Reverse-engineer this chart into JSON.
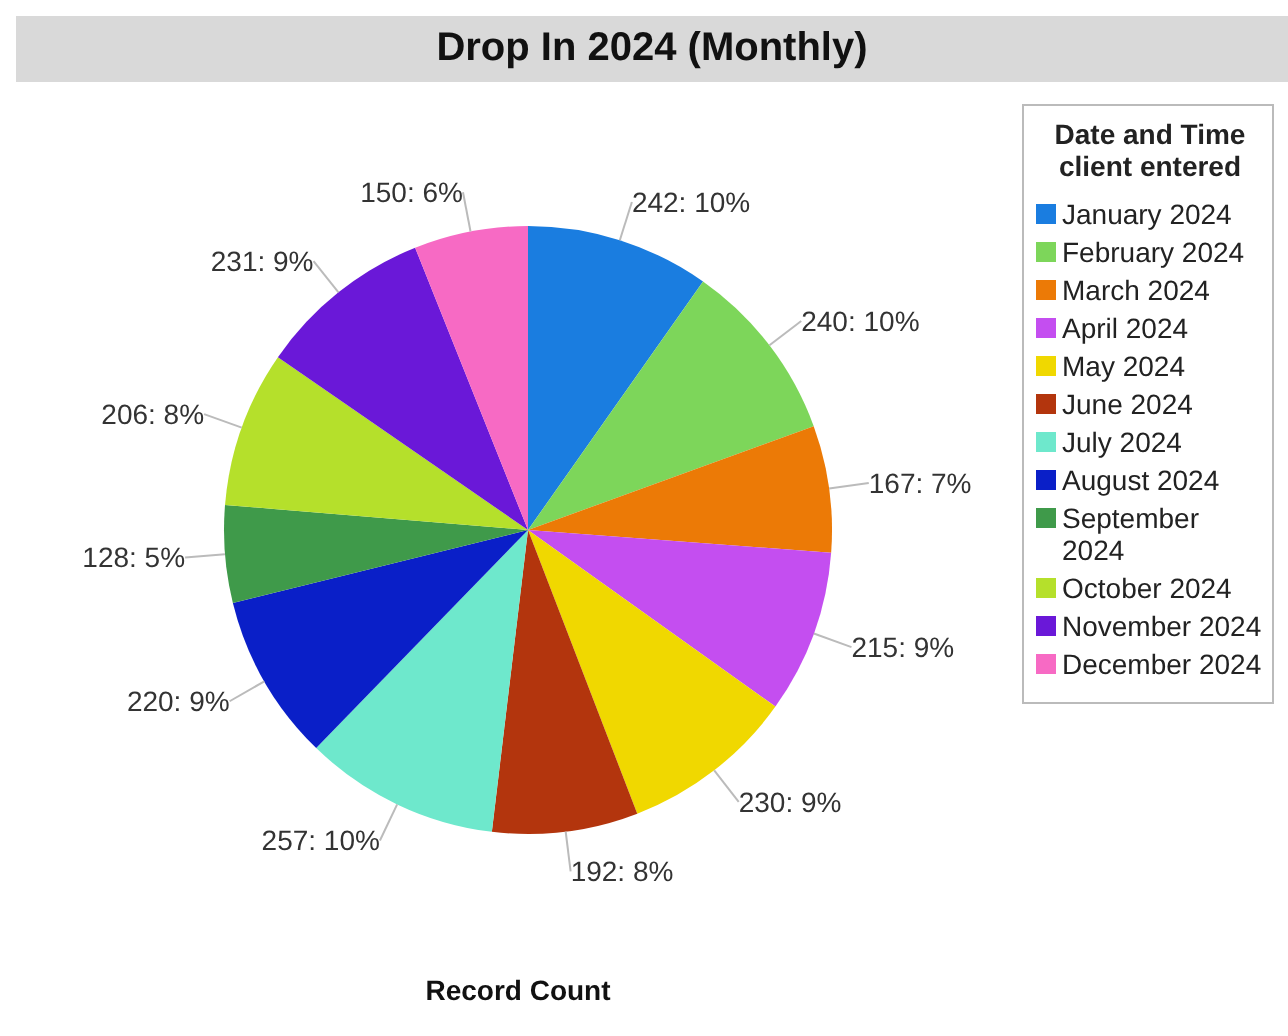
{
  "chart_data": {
    "type": "pie",
    "title": "Drop In 2024 (Monthly)",
    "xlabel": "Record Count",
    "legend_title": "Date and Time client entered",
    "legend": "right",
    "categories": [
      "January 2024",
      "February 2024",
      "March 2024",
      "April 2024",
      "May 2024",
      "June 2024",
      "July 2024",
      "August 2024",
      "September 2024",
      "October 2024",
      "November 2024",
      "December 2024"
    ],
    "values": [
      242,
      240,
      167,
      215,
      230,
      192,
      257,
      220,
      128,
      206,
      231,
      150
    ],
    "value_labels": [
      "242: 10%",
      "240: 10%",
      "167: 7%",
      "215: 9%",
      "230: 9%",
      "192: 8%",
      "257: 10%",
      "220: 9%",
      "128: 5%",
      "206: 8%",
      "231: 9%",
      "150: 6%"
    ],
    "colors": [
      "#1a7de0",
      "#7dd65a",
      "#ec7a06",
      "#c44ef0",
      "#f0d800",
      "#b3350d",
      "#6ee8cc",
      "#0a1fc8",
      "#3f9a4a",
      "#b5e02b",
      "#6a18d8",
      "#f76ac4"
    ]
  }
}
